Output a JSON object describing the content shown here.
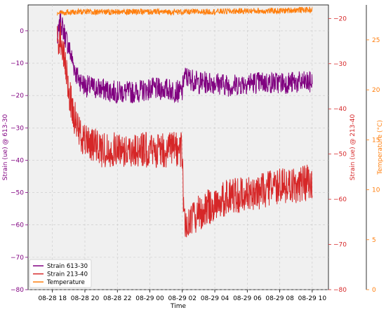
{
  "chart_data": {
    "type": "line",
    "title": "",
    "xlabel": "Time",
    "x_ticks": [
      "08-28 18",
      "08-28 20",
      "08-28 22",
      "08-29 00",
      "08-29 02",
      "08-29 04",
      "08-29 06",
      "08-29 08",
      "08-29 10"
    ],
    "x_tick_hours": [
      18,
      20,
      22,
      24,
      26,
      28,
      30,
      32,
      34
    ],
    "xlim_hours": [
      16.5,
      35.0
    ],
    "grid": true,
    "legend_position": "lower-left",
    "axes": {
      "left": {
        "label": "Strain (ue) @ 613-30",
        "color": "#800080",
        "ylim": [
          -80,
          8
        ],
        "ticks": [
          0,
          -10,
          -20,
          -30,
          -40,
          -50,
          -60,
          -70,
          -80
        ]
      },
      "right1": {
        "label": "Strain (ue) @ 213-40",
        "color": "#d62728",
        "ylim": [
          -80,
          -17
        ],
        "ticks": [
          -20,
          -30,
          -40,
          -50,
          -60,
          -70,
          -80
        ]
      },
      "right2": {
        "label": "Temperature (°C)",
        "color": "#ff7f0e",
        "ylim": [
          0,
          28.5
        ],
        "ticks": [
          0,
          5,
          10,
          15,
          20,
          25
        ]
      }
    },
    "series": [
      {
        "name": "Strain 613-30",
        "color": "#800080",
        "axis": "left",
        "x_hours": [
          18.3,
          18.5,
          19.0,
          19.5,
          20.0,
          21.0,
          22.0,
          23.0,
          24.0,
          25.0,
          26.0,
          26.1,
          27.0,
          28.0,
          29.0,
          30.0,
          31.0,
          32.0,
          33.0,
          34.0
        ],
        "mean": [
          -3,
          3,
          -5,
          -14,
          -17,
          -18,
          -19,
          -19,
          -18,
          -18,
          -19,
          -14,
          -16,
          -16,
          -17,
          -16,
          -16,
          -16,
          -16,
          -16
        ],
        "noise": 3.5
      },
      {
        "name": "Strain 213-40",
        "color": "#d62728",
        "axis": "right1",
        "x_hours": [
          18.3,
          18.5,
          19.0,
          19.5,
          20.0,
          21.0,
          22.0,
          23.0,
          24.0,
          25.0,
          26.0,
          26.1,
          27.0,
          28.0,
          29.0,
          30.0,
          31.0,
          32.0,
          33.0,
          34.0
        ],
        "mean": [
          -25,
          -24,
          -36,
          -44,
          -47,
          -49,
          -49,
          -49,
          -49,
          -49,
          -49,
          -66,
          -63,
          -61,
          -59,
          -59,
          -58,
          -57,
          -57,
          -56
        ],
        "noise": 4
      },
      {
        "name": "Temperature",
        "color": "#ff7f0e",
        "axis": "right2",
        "x_hours": [
          18.3,
          19.0,
          21.0,
          24.0,
          27.0,
          30.0,
          32.0,
          33.0,
          34.0
        ],
        "mean": [
          27.6,
          27.8,
          27.8,
          27.8,
          27.8,
          27.9,
          27.9,
          28.0,
          28.0
        ],
        "noise": 0.3
      }
    ]
  }
}
